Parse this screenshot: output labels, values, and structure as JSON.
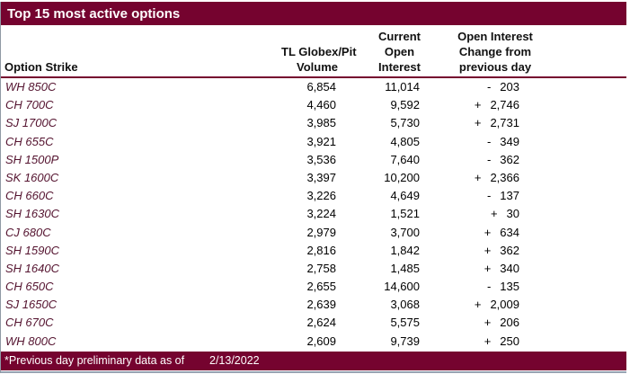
{
  "title": "Top 15 most active options",
  "header": {
    "option_strike": "Option Strike",
    "volume_lines": [
      "TL Globex/Pit",
      "Volume"
    ],
    "open_interest_lines": [
      "Current",
      "Open",
      "Interest"
    ],
    "change_lines": [
      "Open Interest",
      "Change from",
      "previous day"
    ]
  },
  "rows": [
    {
      "strike": "WH 850C",
      "volume": "6,854",
      "open_interest": "11,014",
      "change_sign": "-",
      "change_value": "203"
    },
    {
      "strike": "CH 700C",
      "volume": "4,460",
      "open_interest": "9,592",
      "change_sign": "+",
      "change_value": "2,746"
    },
    {
      "strike": "SJ 1700C",
      "volume": "3,985",
      "open_interest": "5,730",
      "change_sign": "+",
      "change_value": "2,731"
    },
    {
      "strike": "CH 655C",
      "volume": "3,921",
      "open_interest": "4,805",
      "change_sign": "-",
      "change_value": "349"
    },
    {
      "strike": "SH 1500P",
      "volume": "3,536",
      "open_interest": "7,640",
      "change_sign": "-",
      "change_value": "362"
    },
    {
      "strike": "SK 1600C",
      "volume": "3,397",
      "open_interest": "10,200",
      "change_sign": "+",
      "change_value": "2,366"
    },
    {
      "strike": "CH 660C",
      "volume": "3,226",
      "open_interest": "4,649",
      "change_sign": "-",
      "change_value": "137"
    },
    {
      "strike": "SH 1630C",
      "volume": "3,224",
      "open_interest": "1,521",
      "change_sign": "+",
      "change_value": "30"
    },
    {
      "strike": "CJ 680C",
      "volume": "2,979",
      "open_interest": "3,700",
      "change_sign": "+",
      "change_value": "634"
    },
    {
      "strike": "SH 1590C",
      "volume": "2,816",
      "open_interest": "1,842",
      "change_sign": "+",
      "change_value": "362"
    },
    {
      "strike": "SH 1640C",
      "volume": "2,758",
      "open_interest": "1,485",
      "change_sign": "+",
      "change_value": "340"
    },
    {
      "strike": "CH 650C",
      "volume": "2,655",
      "open_interest": "14,600",
      "change_sign": "-",
      "change_value": "135"
    },
    {
      "strike": "SJ 1650C",
      "volume": "2,639",
      "open_interest": "3,068",
      "change_sign": "+",
      "change_value": "2,009"
    },
    {
      "strike": "CH 670C",
      "volume": "2,624",
      "open_interest": "5,575",
      "change_sign": "+",
      "change_value": "206"
    },
    {
      "strike": "WH 800C",
      "volume": "2,609",
      "open_interest": "9,739",
      "change_sign": "+",
      "change_value": "250"
    }
  ],
  "footer": {
    "note": "*Previous day preliminary data as of",
    "date": "2/13/2022"
  },
  "colors": {
    "maroon": "#75032F",
    "strike_text": "#54132F",
    "title_text": "#FFFFFF",
    "body_text": "#000000",
    "bottom_edge": "#97A3B2"
  }
}
